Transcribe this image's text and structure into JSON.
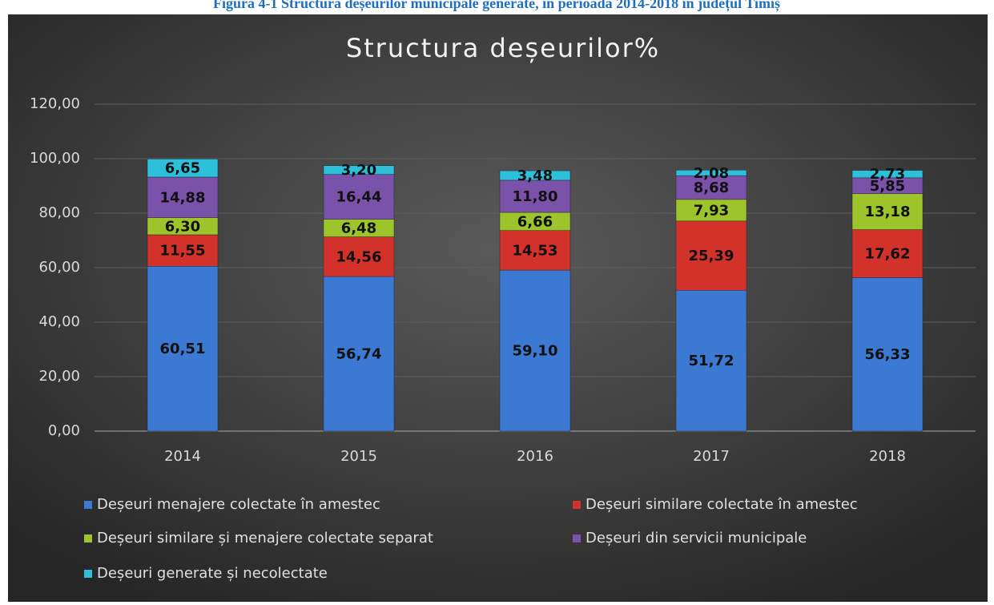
{
  "caption": "Figura 4-1 Structura deșeurilor municipale generate, în perioada 2014-2018 în județul Timiș",
  "chart_data": {
    "type": "stacked_bar",
    "title": "Structura deșeurilor%",
    "categories": [
      "2014",
      "2015",
      "2016",
      "2017",
      "2018"
    ],
    "series": [
      {
        "name": "Deșeuri menajere colectate în amestec",
        "color": "#3b79d2",
        "values": [
          60.51,
          56.74,
          59.1,
          51.72,
          56.33
        ],
        "value_labels": [
          "60,51",
          "56,74",
          "59,10",
          "51,72",
          "56,33"
        ]
      },
      {
        "name": "Deșeuri similare colectate în amestec",
        "color": "#d3322b",
        "values": [
          11.55,
          14.56,
          14.53,
          25.39,
          17.62
        ],
        "value_labels": [
          "11,55",
          "14,56",
          "14,53",
          "25,39",
          "17,62"
        ]
      },
      {
        "name": "Deșeuri similare și menajere colectate separat",
        "color": "#9dc42a",
        "values": [
          6.3,
          6.48,
          6.66,
          7.93,
          13.18
        ],
        "value_labels": [
          "6,30",
          "6,48",
          "6,66",
          "7,93",
          "13,18"
        ]
      },
      {
        "name": "Deșeuri din servicii municipale",
        "color": "#7b52aa",
        "values": [
          14.88,
          16.44,
          11.8,
          8.68,
          5.85
        ],
        "value_labels": [
          "14,88",
          "16,44",
          "11,80",
          "8,68",
          "5,85"
        ]
      },
      {
        "name": "Deșeuri generate și necolectate",
        "color": "#2dc0da",
        "values": [
          6.65,
          3.2,
          3.48,
          2.08,
          2.73
        ],
        "value_labels": [
          "6,65",
          "3,20",
          "3,48",
          "2,08",
          "2,73"
        ]
      }
    ],
    "ylim": [
      0,
      120
    ],
    "yticks": [
      {
        "value": 0,
        "label": "0,00"
      },
      {
        "value": 20,
        "label": "20,00"
      },
      {
        "value": 40,
        "label": "40,00"
      },
      {
        "value": 60,
        "label": "60,00"
      },
      {
        "value": 80,
        "label": "80,00"
      },
      {
        "value": 100,
        "label": "100,00"
      },
      {
        "value": 120,
        "label": "120,00"
      }
    ],
    "grid": true,
    "legend": "bottom"
  }
}
